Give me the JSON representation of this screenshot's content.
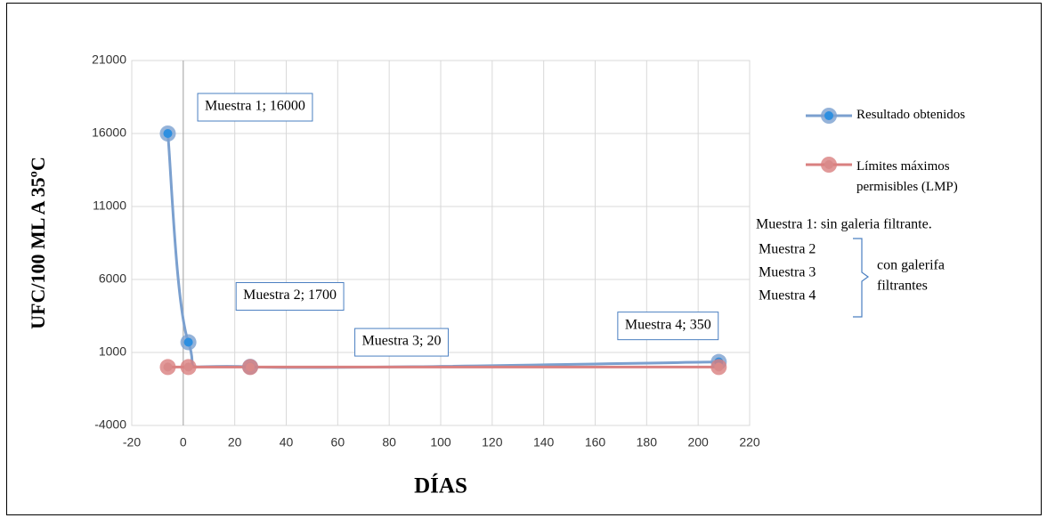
{
  "chart_data": {
    "type": "scatter",
    "x": [
      -6,
      2,
      26,
      208
    ],
    "series": [
      {
        "name": "Resultado obtenidos",
        "color": "#7ba0cf",
        "marker_color": "#2e8fe0",
        "values": [
          16000,
          1700,
          20,
          350
        ],
        "value_labels": [
          "Muestra 1; 16000",
          "Muestra 2; 1700",
          "Muestra 3; 20",
          "Muestra 4; 350"
        ]
      },
      {
        "name": "Límites máximos permisibles (LMP)",
        "color": "#d98080",
        "marker_color": "#d98a8a",
        "values": [
          0,
          0,
          0,
          0
        ]
      }
    ],
    "xlabel": "DÍAS",
    "ylabel": "UFC/100 ML A 35ºC",
    "xlim": [
      -20,
      220
    ],
    "xticks": [
      -20,
      0,
      20,
      40,
      60,
      80,
      100,
      120,
      140,
      160,
      180,
      200,
      220
    ],
    "ylim": [
      -4000,
      21000
    ],
    "yticks": [
      -4000,
      1000,
      6000,
      11000,
      16000,
      21000
    ],
    "grid": true,
    "legend": "right",
    "annotations": [
      "Muestra 1: sin galeria filtrante.",
      "Muestra 2",
      "Muestra 3",
      "Muestra 4"
    ],
    "bracket_note": [
      "con galerifa",
      "filtrantes"
    ]
  }
}
